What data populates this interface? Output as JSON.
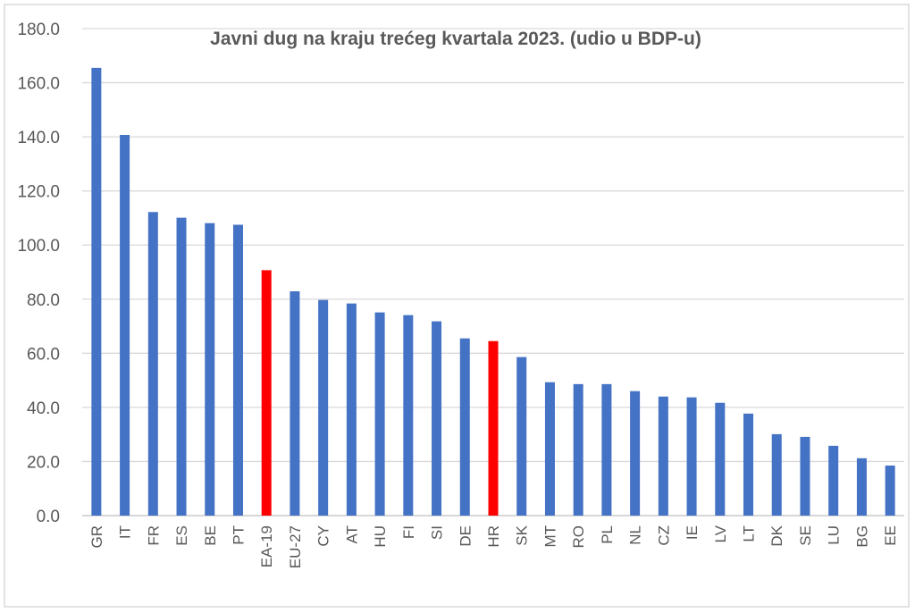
{
  "chart_data": {
    "type": "bar",
    "title": "Javni dug na kraju trećeg kvartala 2023. (udio u BDP-u)",
    "xlabel": "",
    "ylabel": "",
    "ylim": [
      0,
      180
    ],
    "yticks": [
      "0.0",
      "20.0",
      "40.0",
      "60.0",
      "80.0",
      "100.0",
      "120.0",
      "140.0",
      "160.0",
      "180.0"
    ],
    "grid": true,
    "legend": "none",
    "categories": [
      "GR",
      "IT",
      "FR",
      "ES",
      "BE",
      "PT",
      "EA-19",
      "EU-27",
      "CY",
      "AT",
      "HU",
      "FI",
      "SI",
      "DE",
      "HR",
      "SK",
      "MT",
      "RO",
      "PL",
      "NL",
      "CZ",
      "IE",
      "LV",
      "LT",
      "DK",
      "SE",
      "LU",
      "BG",
      "EE"
    ],
    "values": [
      165.5,
      140.7,
      112.2,
      110.1,
      108.1,
      107.5,
      90.7,
      82.9,
      79.7,
      78.4,
      75.1,
      74.1,
      71.8,
      65.5,
      64.5,
      58.6,
      49.3,
      48.6,
      48.6,
      46.0,
      44.0,
      43.7,
      41.7,
      37.7,
      30.1,
      29.1,
      25.8,
      21.2,
      18.5
    ],
    "highlight": [
      "EA-19",
      "HR"
    ],
    "colors": {
      "bar": "#4472c4",
      "highlight": "#ff0000",
      "grid": "#d9d9d9",
      "axis": "#bfbfbf"
    }
  }
}
